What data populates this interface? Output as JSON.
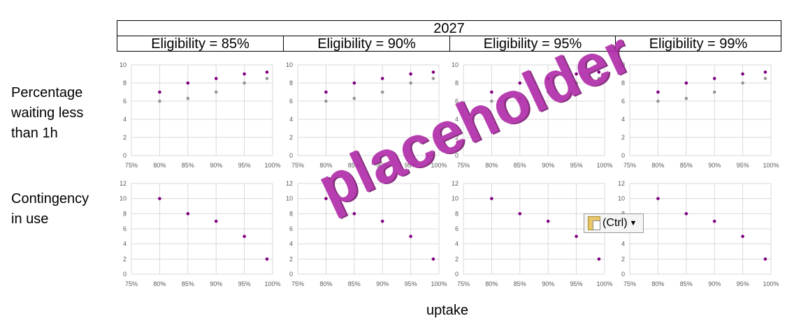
{
  "header": {
    "year": "2027",
    "columns": [
      "Eligibility = 85%",
      "Eligibility = 90%",
      "Eligibility = 95%",
      "Eligibility = 99%"
    ]
  },
  "rows": [
    {
      "label": "Percentage waiting less than 1h"
    },
    {
      "label": "Contingency in use"
    }
  ],
  "x_axis_label": "uptake",
  "watermark": "placeholder",
  "paste_options": {
    "label": "(Ctrl)",
    "icon": "clipboard-icon"
  },
  "colors": {
    "series_primary": "#800080",
    "series_secondary": "#969696",
    "grid": "#d9d9d9",
    "watermark": "#b02aa8"
  },
  "chart_data": [
    {
      "type": "scatter",
      "row": "Percentage waiting less than 1h",
      "panels": [
        "Eligibility = 85%",
        "Eligibility = 90%",
        "Eligibility = 95%",
        "Eligibility = 99%"
      ],
      "xlim": [
        0.75,
        1.0
      ],
      "ylim": [
        0,
        10
      ],
      "x_ticks": [
        "75%",
        "80%",
        "85%",
        "90%",
        "95%",
        "100%"
      ],
      "y_ticks": [
        "0",
        "2",
        "4",
        "6",
        "8",
        "10"
      ],
      "grid": true,
      "series": [
        {
          "color": "#800080",
          "x": [
            0.8,
            0.85,
            0.9,
            0.95,
            0.99
          ],
          "y": [
            7,
            8,
            8.5,
            9,
            9.2
          ]
        },
        {
          "color": "#969696",
          "x": [
            0.8,
            0.85,
            0.9,
            0.95,
            0.99
          ],
          "y": [
            6,
            6.3,
            7,
            8,
            8.5
          ]
        }
      ]
    },
    {
      "type": "scatter",
      "row": "Contingency in use",
      "panels": [
        "Eligibility = 85%",
        "Eligibility = 90%",
        "Eligibility = 95%",
        "Eligibility = 99%"
      ],
      "xlim": [
        0.75,
        1.0
      ],
      "ylim": [
        0,
        12
      ],
      "x_ticks": [
        "75%",
        "80%",
        "85%",
        "90%",
        "95%",
        "100%"
      ],
      "y_ticks": [
        "0",
        "2",
        "4",
        "6",
        "8",
        "10",
        "12"
      ],
      "grid": true,
      "series": [
        {
          "color": "#800080",
          "x": [
            0.8,
            0.85,
            0.9,
            0.95,
            0.99
          ],
          "y": [
            10,
            8,
            7,
            5,
            2
          ]
        }
      ]
    }
  ]
}
